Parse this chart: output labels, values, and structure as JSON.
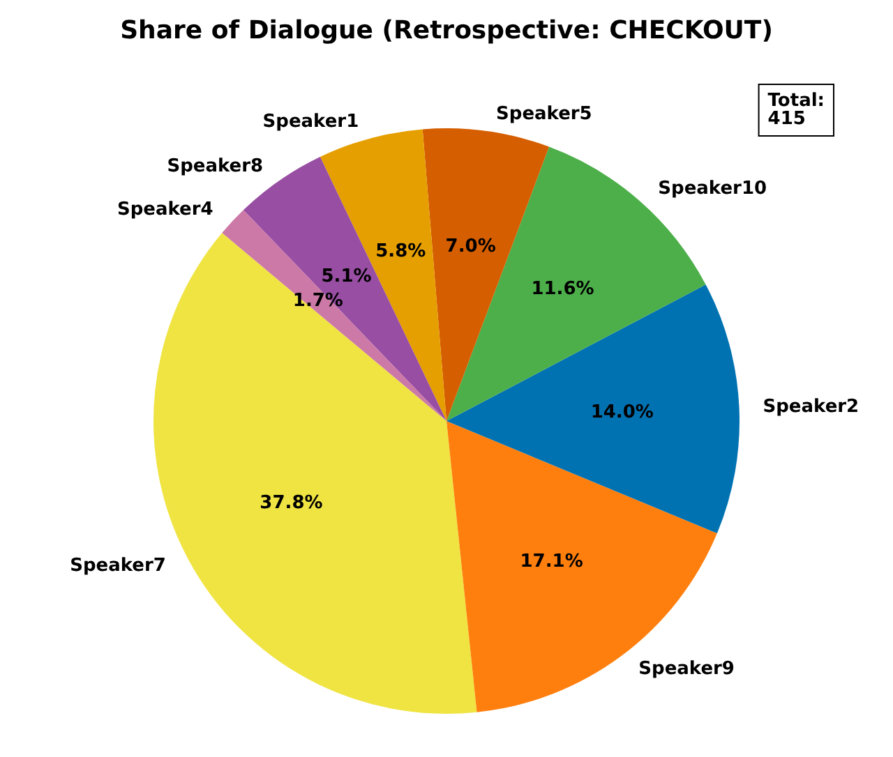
{
  "chart_data": {
    "type": "pie",
    "title": "Share of Dialogue (Retrospective: CHECKOUT)",
    "categories": [
      "Speaker7",
      "Speaker9",
      "Speaker2",
      "Speaker10",
      "Speaker5",
      "Speaker1",
      "Speaker8",
      "Speaker4"
    ],
    "values": [
      37.8,
      17.1,
      14.0,
      11.6,
      7.0,
      5.8,
      5.1,
      1.7
    ],
    "value_labels": [
      "37.8%",
      "17.1%",
      "14.0%",
      "11.6%",
      "7.0%",
      "5.8%",
      "5.1%",
      "1.7%"
    ],
    "colors": [
      "#f0e442",
      "#ff7f0e",
      "#0072b2",
      "#4daf4a",
      "#d55e00",
      "#e69f00",
      "#984ea3",
      "#cc79a7"
    ],
    "annotations": [
      "Total:\n415"
    ],
    "legend": false
  }
}
